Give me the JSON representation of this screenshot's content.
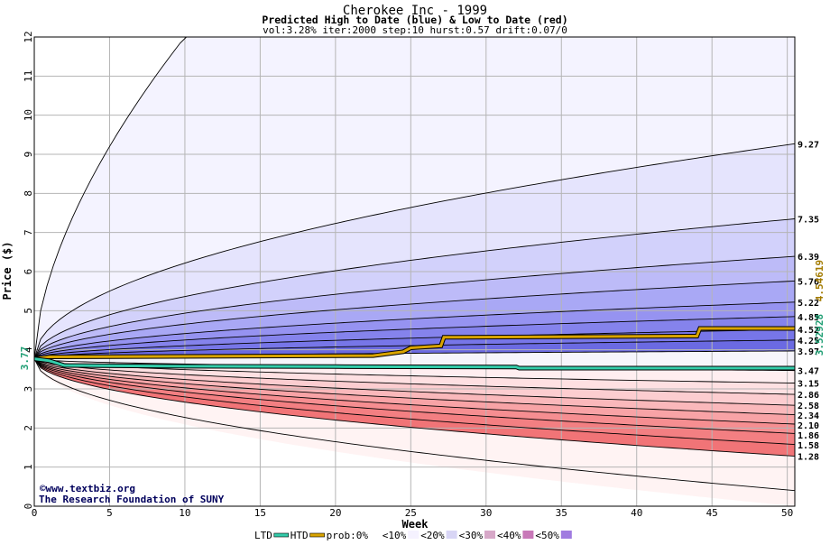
{
  "chart_data": {
    "type": "area",
    "title": "Cherokee Inc - 1999",
    "subtitle": "Predicted High to Date (blue) &  Low to Date (red)",
    "params": "vol:3.28% iter:2000 step:10 hurst:0.57 drift:0.07/0",
    "xlabel": "Week",
    "ylabel": "Price ($)",
    "xlim": [
      0,
      50.5
    ],
    "ylim": [
      0,
      12
    ],
    "xticks": [
      0,
      5,
      10,
      15,
      20,
      25,
      30,
      35,
      40,
      45,
      50
    ],
    "yticks": [
      0,
      1,
      2,
      3,
      4,
      5,
      6,
      7,
      8,
      9,
      10,
      11,
      12
    ],
    "grid": true,
    "start_price": 3.77,
    "start_price_label": "3.77",
    "htd_end": 4.54619,
    "ltd_end": 3.52928,
    "htd_end_label": "4.54619",
    "ltd_end_label": "3.52928",
    "upper_curves_end": [
      12.0,
      9.27,
      7.35,
      6.39,
      5.76,
      5.22,
      4.85,
      4.52,
      4.25,
      3.97
    ],
    "lower_curves_end": [
      3.47,
      3.15,
      2.86,
      2.58,
      2.34,
      2.1,
      1.86,
      1.58,
      1.28,
      0.4
    ],
    "right_labels": [
      "9.27",
      "7.35",
      "6.39",
      "5.76",
      "5.22",
      "4.85",
      "4.52",
      "4.25",
      "3.97",
      "3.47",
      "3.15",
      "2.86",
      "2.58",
      "2.34",
      "2.10",
      "1.86",
      "1.58",
      "1.28"
    ],
    "series": [
      {
        "name": "HTD",
        "color": "#d9a400",
        "x": [
          0,
          1,
          22.5,
          24.5,
          25,
          27,
          27.2,
          44,
          44.2,
          50.5
        ],
        "y": [
          3.77,
          3.82,
          3.85,
          3.95,
          4.05,
          4.1,
          4.32,
          4.35,
          4.54619,
          4.54619
        ]
      },
      {
        "name": "LTD",
        "color": "#33ccaa",
        "x": [
          0,
          1,
          2,
          10,
          20,
          32,
          32.2,
          50.5
        ],
        "y": [
          3.77,
          3.72,
          3.6,
          3.58,
          3.57,
          3.56,
          3.52928,
          3.52928
        ]
      }
    ],
    "legend": {
      "placement": "bottom",
      "items": [
        {
          "label": "LTD",
          "color": "#33ccaa"
        },
        {
          "label": "HTD",
          "color": "#d9a400"
        },
        {
          "label": "prob:0%",
          "color": "#ffffff"
        },
        {
          "label": "<10%",
          "color": "#f5f2ff"
        },
        {
          "label": "<20%",
          "color": "#d8d5f5"
        },
        {
          "label": "<30%",
          "color": "#d7a8c8"
        },
        {
          "label": "<40%",
          "color": "#c878b8"
        },
        {
          "label": "<50%",
          "color": "#a07be0"
        }
      ]
    },
    "colors": {
      "upper_bands": [
        "#f4f3ff",
        "#e5e4fd",
        "#d2d1fb",
        "#bdbbf8",
        "#a9a8f5",
        "#9693f1",
        "#8583ec",
        "#7776e8",
        "#6b6ae2"
      ],
      "lower_bands": [
        "#ffeef0",
        "#fee0e2",
        "#fccdd0",
        "#fab8bb",
        "#f8a3a6",
        "#f68e91",
        "#f37f82",
        "#f17477",
        "#fff3f3"
      ]
    },
    "credits": [
      "©www.textbiz.org",
      "The Research Foundation of SUNY"
    ]
  }
}
